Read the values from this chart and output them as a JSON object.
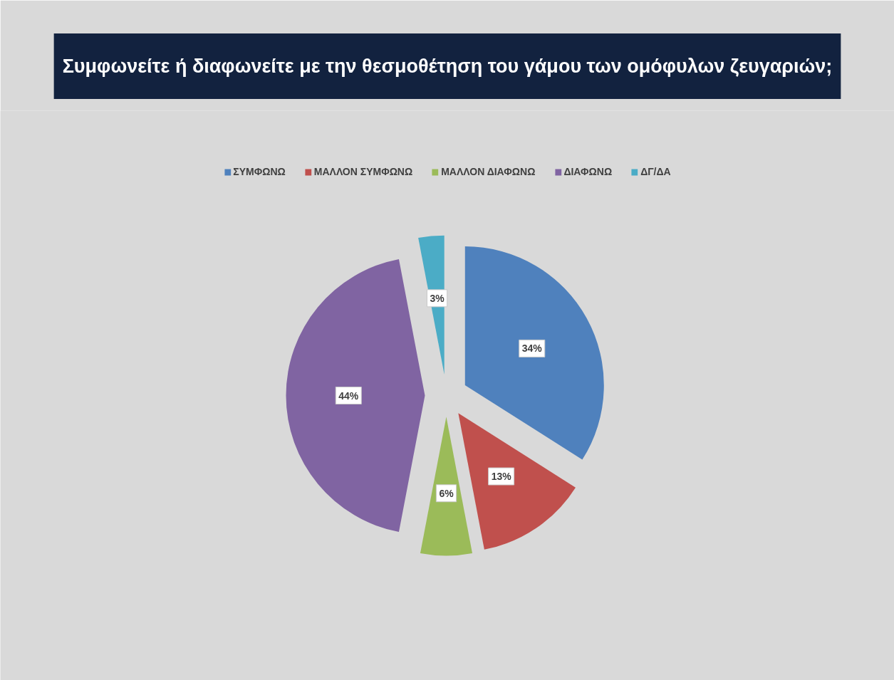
{
  "chart_data": {
    "type": "pie",
    "title": "Συμφωνείτε ή διαφωνείτε με την θεσμοθέτηση του γάμου των ομόφυλων ζευγαριών;",
    "categories": [
      "ΣΥΜΦΩΝΩ",
      "ΜΑΛΛΟΝ ΣΥΜΦΩΝΩ",
      "ΜΑΛΛΟΝ ΔΙΑΦΩΝΩ",
      "ΔΙΑΦΩΝΩ",
      "ΔΓ/ΔΑ"
    ],
    "values": [
      34,
      13,
      6,
      44,
      3
    ],
    "value_labels": [
      "34%",
      "13%",
      "6%",
      "44%",
      "3%"
    ],
    "colors": [
      "#4f81bd",
      "#c0504d",
      "#9bbb59",
      "#8064a2",
      "#4bacc6"
    ],
    "legend": "top"
  }
}
